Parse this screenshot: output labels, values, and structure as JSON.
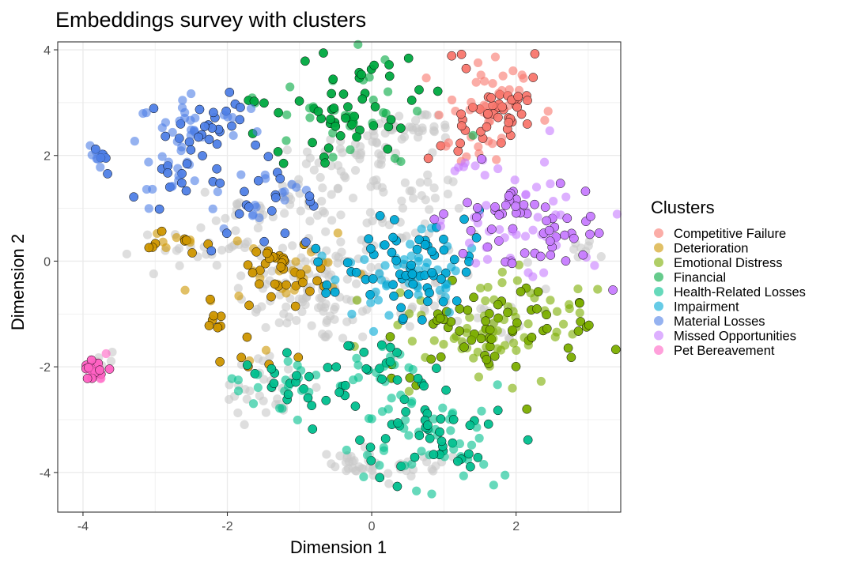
{
  "chart_data": {
    "type": "scatter",
    "title": "Embeddings survey with clusters",
    "xlabel": "Dimension 1",
    "ylabel": "Dimension 2",
    "xlim": [
      -4.35,
      3.45
    ],
    "ylim": [
      -4.75,
      4.15
    ],
    "x_ticks": [
      -4,
      -2,
      0,
      2
    ],
    "x_tick_labels": [
      "-4",
      "-2",
      "0",
      "2"
    ],
    "y_ticks": [
      -4,
      -2,
      0,
      2,
      4
    ],
    "y_tick_labels": [
      "-4",
      "-2",
      "0",
      "2",
      "4"
    ],
    "grid": true,
    "legend_title": "Clusters",
    "legend_position": "right",
    "unclustered_color": "#c8c8c8",
    "series": [
      {
        "name": "Competitive Failure",
        "color": "#f8766d",
        "regions": [
          {
            "cx": 1.75,
            "cy": 3.05,
            "sx": 0.35,
            "sy": 0.4,
            "n": 70
          },
          {
            "cx": 1.3,
            "cy": 2.2,
            "sx": 0.25,
            "sy": 0.25,
            "n": 20
          }
        ]
      },
      {
        "name": "Deterioration",
        "color": "#cd9600",
        "regions": [
          {
            "cx": -1.2,
            "cy": -0.2,
            "sx": 0.35,
            "sy": 0.35,
            "n": 55
          },
          {
            "cx": -2.65,
            "cy": 0.4,
            "sx": 0.25,
            "sy": 0.12,
            "n": 15
          },
          {
            "cx": -2.2,
            "cy": -1.1,
            "sx": 0.1,
            "sy": 0.25,
            "n": 10
          },
          {
            "cx": -1.6,
            "cy": -1.8,
            "sx": 0.2,
            "sy": 0.12,
            "n": 8
          }
        ]
      },
      {
        "name": "Emotional Distress",
        "color": "#7cae00",
        "regions": [
          {
            "cx": 1.4,
            "cy": -1.3,
            "sx": 0.55,
            "sy": 0.5,
            "n": 110
          },
          {
            "cx": 2.7,
            "cy": -1.2,
            "sx": 0.3,
            "sy": 0.3,
            "n": 22
          }
        ]
      },
      {
        "name": "Financial",
        "color": "#00a940",
        "regions": [
          {
            "cx": -0.3,
            "cy": 2.9,
            "sx": 0.55,
            "sy": 0.5,
            "n": 80
          },
          {
            "cx": -1.6,
            "cy": 3.05,
            "sx": 0.1,
            "sy": 0.08,
            "n": 5
          }
        ]
      },
      {
        "name": "Health-Related Losses",
        "color": "#00bf8e",
        "regions": [
          {
            "cx": 0.9,
            "cy": -3.3,
            "sx": 0.55,
            "sy": 0.5,
            "n": 90
          },
          {
            "cx": -1.2,
            "cy": -2.3,
            "sx": 0.4,
            "sy": 0.3,
            "n": 40
          },
          {
            "cx": 0.2,
            "cy": -2.0,
            "sx": 0.45,
            "sy": 0.3,
            "n": 35
          }
        ]
      },
      {
        "name": "Impairment",
        "color": "#00a9d6",
        "regions": [
          {
            "cx": 0.5,
            "cy": -0.2,
            "sx": 0.55,
            "sy": 0.5,
            "n": 110
          }
        ]
      },
      {
        "name": "Material Losses",
        "color": "#4f7fe6",
        "regions": [
          {
            "cx": -2.35,
            "cy": 2.55,
            "sx": 0.35,
            "sy": 0.25,
            "n": 55
          },
          {
            "cx": -2.8,
            "cy": 1.6,
            "sx": 0.25,
            "sy": 0.4,
            "n": 30
          },
          {
            "cx": -1.5,
            "cy": 1.1,
            "sx": 0.35,
            "sy": 0.35,
            "n": 35
          },
          {
            "cx": -3.8,
            "cy": 1.95,
            "sx": 0.08,
            "sy": 0.15,
            "n": 14
          }
        ]
      },
      {
        "name": "Missed Opportunities",
        "color": "#c77cff",
        "regions": [
          {
            "cx": 2.2,
            "cy": 0.75,
            "sx": 0.55,
            "sy": 0.45,
            "n": 100
          },
          {
            "cx": 1.35,
            "cy": 1.8,
            "sx": 0.15,
            "sy": 0.12,
            "n": 8
          }
        ]
      },
      {
        "name": "Pet Bereavement",
        "color": "#ff61c3",
        "regions": [
          {
            "cx": -3.83,
            "cy": -2.05,
            "sx": 0.1,
            "sy": 0.12,
            "n": 26
          }
        ]
      }
    ],
    "unclustered_regions": [
      {
        "cx": -0.8,
        "cy": -0.5,
        "sx": 0.55,
        "sy": 0.55,
        "n": 110
      },
      {
        "cx": -0.2,
        "cy": 2.0,
        "sx": 0.45,
        "sy": 0.35,
        "n": 45
      },
      {
        "cx": 0.6,
        "cy": 2.55,
        "sx": 0.3,
        "sy": 0.15,
        "n": 30
      },
      {
        "cx": -1.2,
        "cy": 1.0,
        "sx": 0.45,
        "sy": 0.3,
        "n": 40
      },
      {
        "cx": -2.4,
        "cy": 0.3,
        "sx": 0.4,
        "sy": 0.2,
        "n": 22
      },
      {
        "cx": -0.3,
        "cy": -3.8,
        "sx": 0.15,
        "sy": 0.12,
        "n": 18
      },
      {
        "cx": 0.5,
        "cy": -3.9,
        "sx": 0.4,
        "sy": 0.2,
        "n": 25
      },
      {
        "cx": -1.5,
        "cy": -2.4,
        "sx": 0.35,
        "sy": 0.3,
        "n": 30
      },
      {
        "cx": 1.0,
        "cy": -0.9,
        "sx": 0.6,
        "sy": 0.45,
        "n": 40
      },
      {
        "cx": 0.4,
        "cy": 0.9,
        "sx": 0.55,
        "sy": 0.45,
        "n": 45
      },
      {
        "cx": 2.9,
        "cy": 0.2,
        "sx": 0.1,
        "sy": 0.1,
        "n": 8
      },
      {
        "cx": -3.75,
        "cy": -1.85,
        "sx": 0.1,
        "sy": 0.15,
        "n": 6
      }
    ]
  }
}
